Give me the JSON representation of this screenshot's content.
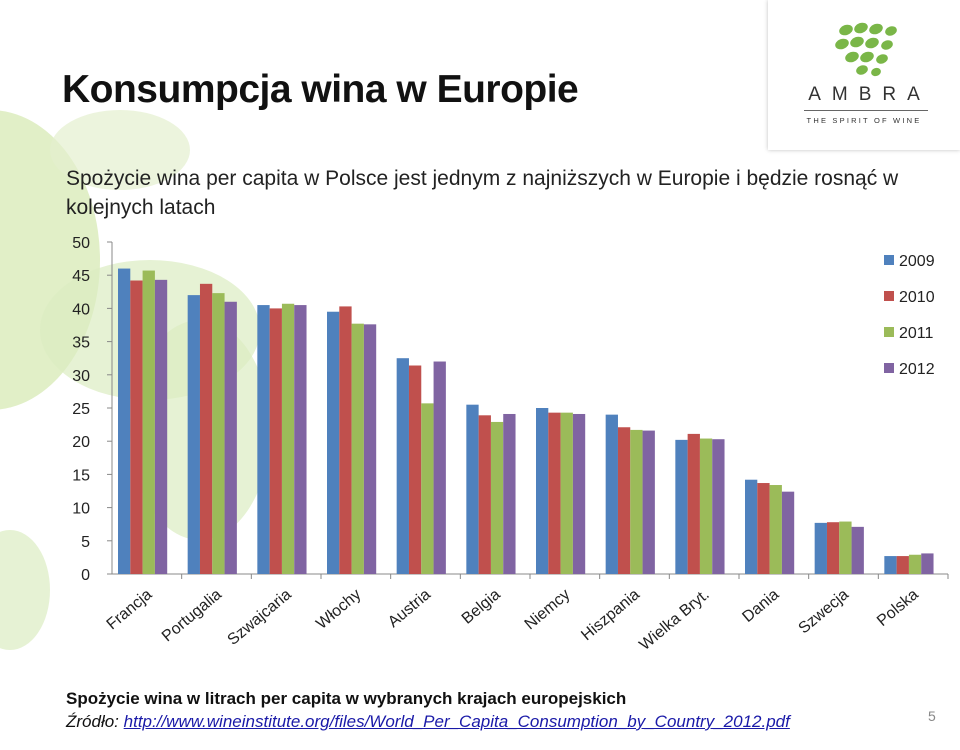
{
  "slide": {
    "title": "Konsumpcja wina w Europie",
    "subtitle": "Spożycie wina per capita w Polsce jest jednym z najniższych w Europie i będzie rosnąć w kolejnych latach",
    "caption": "Spożycie wina w litrach per capita w wybranych krajach europejskich",
    "source_prefix": "Źródło: ",
    "source_link": "http://www.wineinstitute.org/files/World_Per_Capita_Consumption_by_Country_2012.pdf",
    "page_number": "5"
  },
  "logo": {
    "brand": "AMBRA",
    "tagline": "THE SPIRIT OF WINE",
    "icon": "grape-cluster-icon",
    "color": "#7ab648"
  },
  "chart_data": {
    "type": "bar",
    "title": "",
    "xlabel": "",
    "ylabel": "",
    "ylim": [
      0,
      50
    ],
    "yticks": [
      0,
      5,
      10,
      15,
      20,
      25,
      30,
      35,
      40,
      45,
      50
    ],
    "grid": false,
    "legend_position": "right",
    "categories": [
      "Francja",
      "Portugalia",
      "Szwajcaria",
      "Włochy",
      "Austria",
      "Belgia",
      "Niemcy",
      "Hiszpania",
      "Wielka Bryt.",
      "Dania",
      "Szwecja",
      "Polska"
    ],
    "series": [
      {
        "name": "2009",
        "color": "#4f81bd",
        "values": [
          46.0,
          42.0,
          40.5,
          39.5,
          32.5,
          25.5,
          25.0,
          24.0,
          20.2,
          14.2,
          7.7,
          2.7
        ]
      },
      {
        "name": "2010",
        "color": "#c0504d",
        "values": [
          44.2,
          43.7,
          40.0,
          40.3,
          31.4,
          23.9,
          24.3,
          22.1,
          21.1,
          13.7,
          7.8,
          2.7
        ]
      },
      {
        "name": "2011",
        "color": "#9bbb59",
        "values": [
          45.7,
          42.3,
          40.7,
          37.7,
          25.7,
          22.9,
          24.3,
          21.7,
          20.4,
          13.4,
          7.9,
          2.9
        ]
      },
      {
        "name": "2012",
        "color": "#8064a2",
        "values": [
          44.3,
          41.0,
          40.5,
          37.6,
          32.0,
          24.1,
          24.1,
          21.6,
          20.3,
          12.4,
          7.1,
          3.1
        ]
      }
    ]
  }
}
